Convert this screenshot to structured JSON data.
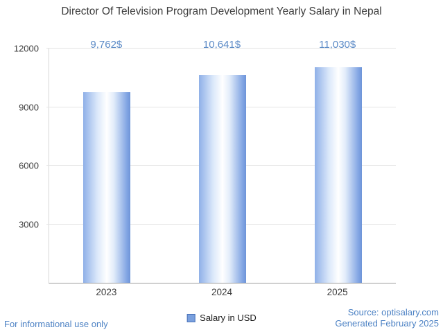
{
  "title": "Director Of Television Program Development Yearly Salary in Nepal",
  "chart_data": {
    "type": "bar",
    "title": "Director Of Television Program Development Yearly Salary in Nepal",
    "categories": [
      "2023",
      "2024",
      "2025"
    ],
    "values": [
      9762,
      10641,
      11030
    ],
    "value_labels": [
      "9,762$",
      "10,641$",
      "11,030$"
    ],
    "ylim": [
      0,
      12000
    ],
    "yticks": [
      3000,
      6000,
      9000,
      12000
    ],
    "xlabel": "",
    "ylabel": "",
    "grid": true,
    "legend": "Salary in USD",
    "legend_position": "bottom"
  },
  "footer": {
    "left": "For informational use only",
    "source": "Source: optisalary.com",
    "generated": "Generated February 2025"
  },
  "colors": {
    "accent_text": "#5b8ac6",
    "bar_edge": "#8fb0e8",
    "bar_center": "#ffffff",
    "legend_swatch": "#7aa0de",
    "gridline": "#e3e3e3",
    "axis": "#9b9b9b",
    "title_text": "#3d3d3d"
  }
}
